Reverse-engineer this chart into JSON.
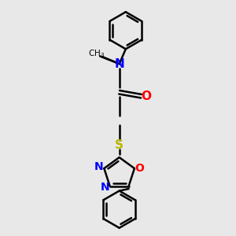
{
  "background_color": "#e8e8e8",
  "bond_color": "#000000",
  "N_color": "#0000ff",
  "O_color": "#ff0000",
  "S_color": "#b8b800",
  "line_width": 1.8,
  "figsize": [
    3.0,
    3.0
  ],
  "dpi": 100,
  "xlim": [
    -2.5,
    2.5
  ],
  "ylim": [
    -4.5,
    4.5
  ]
}
